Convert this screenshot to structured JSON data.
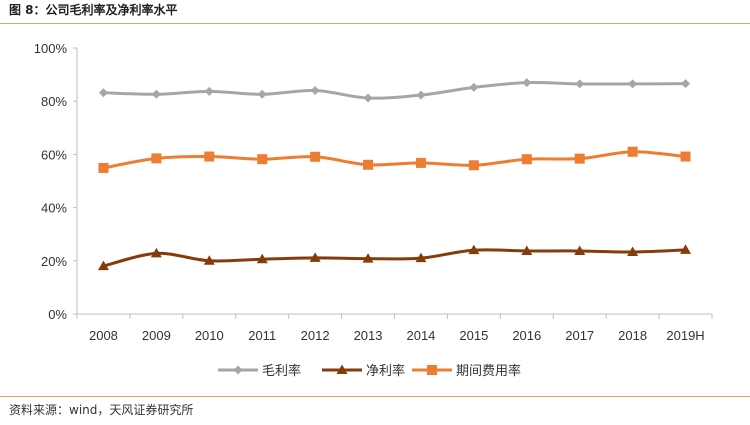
{
  "figure": {
    "title": "图 8：公司毛利率及净利率水平",
    "source": "资料来源：wind，天风证券研究所"
  },
  "colors": {
    "rule": "#d6a463",
    "gross": "#a6a6a6",
    "net": "#843c0c",
    "expense": "#ed7d31"
  },
  "chart_data": {
    "type": "line",
    "title": "",
    "xlabel": "",
    "ylabel": "",
    "categories": [
      "2008",
      "2009",
      "2010",
      "2011",
      "2012",
      "2013",
      "2014",
      "2015",
      "2016",
      "2017",
      "2018",
      "2019H"
    ],
    "ylim": [
      0,
      100
    ],
    "y_ticks": [
      "0%",
      "20%",
      "40%",
      "60%",
      "80%",
      "100%"
    ],
    "y_tick_values": [
      0,
      20,
      40,
      60,
      80,
      100
    ],
    "grid": false,
    "legend_position": "bottom",
    "series": [
      {
        "name": "毛利率",
        "marker": "diamond",
        "color": "#a6a6a6",
        "values": [
          83.2,
          82.6,
          83.7,
          82.6,
          84.0,
          81.2,
          82.3,
          85.2,
          87.0,
          86.5,
          86.5,
          86.6
        ]
      },
      {
        "name": "净利率",
        "marker": "triangle",
        "color": "#843c0c",
        "values": [
          18.0,
          22.8,
          20.0,
          20.6,
          21.1,
          20.8,
          21.0,
          24.0,
          23.7,
          23.7,
          23.3,
          24.1
        ]
      },
      {
        "name": "期间费用率",
        "marker": "square",
        "color": "#ed7d31",
        "values": [
          54.9,
          58.5,
          59.2,
          58.2,
          59.1,
          56.1,
          56.8,
          55.9,
          58.2,
          58.4,
          61.0,
          59.2
        ]
      }
    ]
  }
}
